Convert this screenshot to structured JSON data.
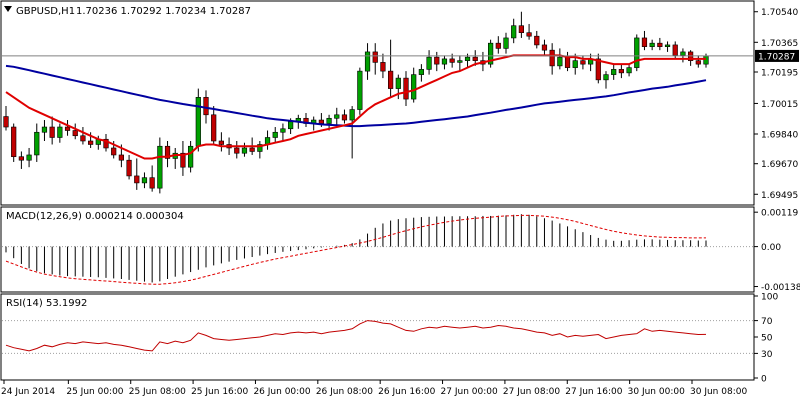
{
  "header": {
    "symbol_label": "GBPUSD,H1",
    "ohlc_text": "1.70236 1.70292 1.70234 1.70287"
  },
  "colors": {
    "background": "#ffffff",
    "frame": "#000000",
    "grid_dotted": "#a0a0a0",
    "bull_candle": "#00a000",
    "bear_candle": "#c00000",
    "ma_fast": "#e00000",
    "ma_slow": "#0000a0",
    "macd_hist": "#000000",
    "macd_signal": "#e00000",
    "rsi_line": "#c00000",
    "current_price_line": "#808080"
  },
  "chart_data": [
    {
      "type": "candlestick",
      "title": "GBPUSD,H1",
      "ylim": [
        1.69445,
        1.7059
      ],
      "y_ticks": [
        1.7054,
        1.70365,
        1.70195,
        1.70015,
        1.6984,
        1.6967,
        1.69495
      ],
      "y_tick_labels": [
        "1.70540",
        "1.70365",
        "1.70195",
        "1.70015",
        "1.69840",
        "1.69670",
        "1.69495"
      ],
      "current_price": 1.70287,
      "current_price_label": "1.70287",
      "x_labels": [
        "24 Jun 2014",
        "25 Jun 00:00",
        "25 Jun 08:00",
        "25 Jun 16:00",
        "26 Jun 00:00",
        "26 Jun 08:00",
        "26 Jun 16:00",
        "27 Jun 00:00",
        "27 Jun 08:00",
        "27 Jun 16:00",
        "30 Jun 00:00",
        "30 Jun 08:00"
      ],
      "candles": [
        {
          "o": 1.6994,
          "h": 1.7,
          "l": 1.6986,
          "c": 1.6988
        },
        {
          "o": 1.6988,
          "h": 1.699,
          "l": 1.6968,
          "c": 1.6971
        },
        {
          "o": 1.6971,
          "h": 1.6974,
          "l": 1.6964,
          "c": 1.6969
        },
        {
          "o": 1.6969,
          "h": 1.6976,
          "l": 1.6965,
          "c": 1.6972
        },
        {
          "o": 1.6972,
          "h": 1.699,
          "l": 1.6968,
          "c": 1.6985
        },
        {
          "o": 1.6985,
          "h": 1.6992,
          "l": 1.698,
          "c": 1.6988
        },
        {
          "o": 1.6988,
          "h": 1.6994,
          "l": 1.6978,
          "c": 1.6982
        },
        {
          "o": 1.6982,
          "h": 1.699,
          "l": 1.6979,
          "c": 1.6988
        },
        {
          "o": 1.6988,
          "h": 1.6992,
          "l": 1.6983,
          "c": 1.6986
        },
        {
          "o": 1.6986,
          "h": 1.699,
          "l": 1.6981,
          "c": 1.6983
        },
        {
          "o": 1.6983,
          "h": 1.6988,
          "l": 1.6978,
          "c": 1.698
        },
        {
          "o": 1.698,
          "h": 1.6985,
          "l": 1.6976,
          "c": 1.6978
        },
        {
          "o": 1.6978,
          "h": 1.6983,
          "l": 1.6975,
          "c": 1.6981
        },
        {
          "o": 1.6981,
          "h": 1.6984,
          "l": 1.6974,
          "c": 1.6976
        },
        {
          "o": 1.6976,
          "h": 1.698,
          "l": 1.697,
          "c": 1.6972
        },
        {
          "o": 1.6972,
          "h": 1.6978,
          "l": 1.6965,
          "c": 1.6969
        },
        {
          "o": 1.6969,
          "h": 1.6972,
          "l": 1.6958,
          "c": 1.696
        },
        {
          "o": 1.696,
          "h": 1.697,
          "l": 1.6952,
          "c": 1.6956
        },
        {
          "o": 1.6956,
          "h": 1.6962,
          "l": 1.6953,
          "c": 1.6959
        },
        {
          "o": 1.6959,
          "h": 1.6966,
          "l": 1.6951,
          "c": 1.6953
        },
        {
          "o": 1.6953,
          "h": 1.6982,
          "l": 1.695,
          "c": 1.6977
        },
        {
          "o": 1.6977,
          "h": 1.698,
          "l": 1.6965,
          "c": 1.697
        },
        {
          "o": 1.697,
          "h": 1.6976,
          "l": 1.6964,
          "c": 1.6973
        },
        {
          "o": 1.6973,
          "h": 1.698,
          "l": 1.696,
          "c": 1.6965
        },
        {
          "o": 1.6965,
          "h": 1.698,
          "l": 1.6962,
          "c": 1.6977
        },
        {
          "o": 1.6977,
          "h": 1.701,
          "l": 1.6974,
          "c": 1.7005
        },
        {
          "o": 1.7005,
          "h": 1.7009,
          "l": 1.699,
          "c": 1.6995
        },
        {
          "o": 1.6995,
          "h": 1.7,
          "l": 1.6978,
          "c": 1.698
        },
        {
          "o": 1.698,
          "h": 1.6985,
          "l": 1.6974,
          "c": 1.6978
        },
        {
          "o": 1.6978,
          "h": 1.6982,
          "l": 1.6972,
          "c": 1.6976
        },
        {
          "o": 1.6976,
          "h": 1.698,
          "l": 1.697,
          "c": 1.6973
        },
        {
          "o": 1.6973,
          "h": 1.6979,
          "l": 1.6971,
          "c": 1.6976
        },
        {
          "o": 1.6976,
          "h": 1.6982,
          "l": 1.6972,
          "c": 1.6974
        },
        {
          "o": 1.6974,
          "h": 1.698,
          "l": 1.697,
          "c": 1.6978
        },
        {
          "o": 1.6978,
          "h": 1.6986,
          "l": 1.6975,
          "c": 1.6982
        },
        {
          "o": 1.6982,
          "h": 1.6988,
          "l": 1.6979,
          "c": 1.6985
        },
        {
          "o": 1.6985,
          "h": 1.699,
          "l": 1.698,
          "c": 1.6987
        },
        {
          "o": 1.6987,
          "h": 1.6993,
          "l": 1.6984,
          "c": 1.6991
        },
        {
          "o": 1.6991,
          "h": 1.6995,
          "l": 1.6987,
          "c": 1.6993
        },
        {
          "o": 1.6993,
          "h": 1.6996,
          "l": 1.6988,
          "c": 1.699
        },
        {
          "o": 1.699,
          "h": 1.6994,
          "l": 1.6986,
          "c": 1.6992
        },
        {
          "o": 1.6992,
          "h": 1.6996,
          "l": 1.6988,
          "c": 1.699
        },
        {
          "o": 1.699,
          "h": 1.6995,
          "l": 1.6986,
          "c": 1.6993
        },
        {
          "o": 1.6993,
          "h": 1.6999,
          "l": 1.6988,
          "c": 1.6995
        },
        {
          "o": 1.6995,
          "h": 1.6998,
          "l": 1.699,
          "c": 1.6992
        },
        {
          "o": 1.6992,
          "h": 1.7,
          "l": 1.697,
          "c": 1.6998
        },
        {
          "o": 1.6998,
          "h": 1.7022,
          "l": 1.6995,
          "c": 1.702
        },
        {
          "o": 1.702,
          "h": 1.7036,
          "l": 1.7015,
          "c": 1.7031
        },
        {
          "o": 1.7031,
          "h": 1.7036,
          "l": 1.7018,
          "c": 1.7025
        },
        {
          "o": 1.7025,
          "h": 1.703,
          "l": 1.7016,
          "c": 1.702
        },
        {
          "o": 1.702,
          "h": 1.7038,
          "l": 1.7005,
          "c": 1.701
        },
        {
          "o": 1.701,
          "h": 1.7018,
          "l": 1.7004,
          "c": 1.7016
        },
        {
          "o": 1.7016,
          "h": 1.702,
          "l": 1.7,
          "c": 1.7004
        },
        {
          "o": 1.7004,
          "h": 1.7022,
          "l": 1.7002,
          "c": 1.7018
        },
        {
          "o": 1.7018,
          "h": 1.7024,
          "l": 1.7014,
          "c": 1.7021
        },
        {
          "o": 1.7021,
          "h": 1.7032,
          "l": 1.7018,
          "c": 1.7028
        },
        {
          "o": 1.7028,
          "h": 1.7031,
          "l": 1.702,
          "c": 1.7024
        },
        {
          "o": 1.7024,
          "h": 1.7029,
          "l": 1.7021,
          "c": 1.7027
        },
        {
          "o": 1.7027,
          "h": 1.703,
          "l": 1.7022,
          "c": 1.7025
        },
        {
          "o": 1.7025,
          "h": 1.7029,
          "l": 1.702,
          "c": 1.7026
        },
        {
          "o": 1.7026,
          "h": 1.703,
          "l": 1.7022,
          "c": 1.7028
        },
        {
          "o": 1.7028,
          "h": 1.7032,
          "l": 1.7023,
          "c": 1.7026
        },
        {
          "o": 1.7026,
          "h": 1.7031,
          "l": 1.702,
          "c": 1.7024
        },
        {
          "o": 1.7024,
          "h": 1.7038,
          "l": 1.7022,
          "c": 1.7036
        },
        {
          "o": 1.7036,
          "h": 1.704,
          "l": 1.703,
          "c": 1.7033
        },
        {
          "o": 1.7033,
          "h": 1.7042,
          "l": 1.703,
          "c": 1.7039
        },
        {
          "o": 1.7039,
          "h": 1.705,
          "l": 1.7036,
          "c": 1.7046
        },
        {
          "o": 1.7046,
          "h": 1.7054,
          "l": 1.7039,
          "c": 1.7042
        },
        {
          "o": 1.7042,
          "h": 1.7047,
          "l": 1.7038,
          "c": 1.704
        },
        {
          "o": 1.704,
          "h": 1.7043,
          "l": 1.7033,
          "c": 1.7035
        },
        {
          "o": 1.7035,
          "h": 1.7038,
          "l": 1.7029,
          "c": 1.7032
        },
        {
          "o": 1.7032,
          "h": 1.7036,
          "l": 1.7018,
          "c": 1.7023
        },
        {
          "o": 1.7023,
          "h": 1.7033,
          "l": 1.7021,
          "c": 1.7028
        },
        {
          "o": 1.7028,
          "h": 1.7031,
          "l": 1.702,
          "c": 1.7022
        },
        {
          "o": 1.7022,
          "h": 1.703,
          "l": 1.7018,
          "c": 1.7026
        },
        {
          "o": 1.7026,
          "h": 1.7029,
          "l": 1.7021,
          "c": 1.7024
        },
        {
          "o": 1.7024,
          "h": 1.703,
          "l": 1.702,
          "c": 1.7027
        },
        {
          "o": 1.7027,
          "h": 1.703,
          "l": 1.7013,
          "c": 1.7015
        },
        {
          "o": 1.7015,
          "h": 1.702,
          "l": 1.701,
          "c": 1.7018
        },
        {
          "o": 1.7018,
          "h": 1.7024,
          "l": 1.7015,
          "c": 1.7021
        },
        {
          "o": 1.7021,
          "h": 1.7024,
          "l": 1.7016,
          "c": 1.7019
        },
        {
          "o": 1.7019,
          "h": 1.7024,
          "l": 1.7017,
          "c": 1.7022
        },
        {
          "o": 1.7022,
          "h": 1.7041,
          "l": 1.702,
          "c": 1.7039
        },
        {
          "o": 1.7039,
          "h": 1.7043,
          "l": 1.7032,
          "c": 1.7034
        },
        {
          "o": 1.7034,
          "h": 1.7038,
          "l": 1.7032,
          "c": 1.7036
        },
        {
          "o": 1.7036,
          "h": 1.7039,
          "l": 1.7032,
          "c": 1.7034
        },
        {
          "o": 1.7034,
          "h": 1.7037,
          "l": 1.7031,
          "c": 1.7035
        },
        {
          "o": 1.7035,
          "h": 1.7037,
          "l": 1.7027,
          "c": 1.7029
        },
        {
          "o": 1.7029,
          "h": 1.7033,
          "l": 1.7025,
          "c": 1.7031
        },
        {
          "o": 1.7031,
          "h": 1.7032,
          "l": 1.7023,
          "c": 1.7026
        },
        {
          "o": 1.7026,
          "h": 1.7029,
          "l": 1.7022,
          "c": 1.7024
        },
        {
          "o": 1.7024,
          "h": 1.703,
          "l": 1.7022,
          "c": 1.70287
        }
      ],
      "ma_fast": [
        1.7008,
        1.7005,
        1.7002,
        1.6999,
        1.6997,
        1.6995,
        1.6993,
        1.6991,
        1.6989,
        1.6987,
        1.6985,
        1.6983,
        1.6981,
        1.698,
        1.6978,
        1.6976,
        1.6974,
        1.6972,
        1.697,
        1.697,
        1.6971,
        1.6971,
        1.6972,
        1.6972,
        1.6973,
        1.6977,
        1.6978,
        1.6978,
        1.6977,
        1.6977,
        1.6977,
        1.6977,
        1.6977,
        1.6977,
        1.6978,
        1.6979,
        1.698,
        1.6981,
        1.6983,
        1.6984,
        1.6985,
        1.6986,
        1.6987,
        1.6988,
        1.6989,
        1.699,
        1.6994,
        1.6998,
        1.7001,
        1.7003,
        1.7005,
        1.7007,
        1.7008,
        1.7009,
        1.7011,
        1.7013,
        1.7015,
        1.7017,
        1.7019,
        1.702,
        1.7022,
        1.7024,
        1.7025,
        1.7026,
        1.7027,
        1.7028,
        1.7029,
        1.7029,
        1.7029,
        1.7029,
        1.7029,
        1.7029,
        1.7029,
        1.7028,
        1.7028,
        1.7027,
        1.7027,
        1.7026,
        1.7025,
        1.7024,
        1.7024,
        1.7024,
        1.7026,
        1.7027,
        1.7027,
        1.7027,
        1.7027,
        1.7027,
        1.7027,
        1.7027,
        1.7027,
        1.7027
      ],
      "ma_slow": [
        1.7023,
        1.70225,
        1.70215,
        1.70205,
        1.70195,
        1.70185,
        1.70175,
        1.70165,
        1.70155,
        1.70145,
        1.70135,
        1.70125,
        1.70115,
        1.70105,
        1.70095,
        1.70085,
        1.70075,
        1.70065,
        1.70055,
        1.70045,
        1.70035,
        1.70028,
        1.7002,
        1.70012,
        1.70005,
        1.69998,
        1.6999,
        1.69983,
        1.69975,
        1.69968,
        1.6996,
        1.69953,
        1.69945,
        1.69938,
        1.6993,
        1.69925,
        1.6992,
        1.69915,
        1.6991,
        1.69905,
        1.699,
        1.69895,
        1.69892,
        1.6989,
        1.69888,
        1.69885,
        1.69885,
        1.69888,
        1.6989,
        1.69892,
        1.69895,
        1.69898,
        1.699,
        1.69905,
        1.6991,
        1.69915,
        1.6992,
        1.69925,
        1.6993,
        1.69935,
        1.6994,
        1.69948,
        1.69955,
        1.69962,
        1.6997,
        1.69978,
        1.69985,
        1.69992,
        1.7,
        1.70008,
        1.70015,
        1.7002,
        1.70025,
        1.7003,
        1.70035,
        1.7004,
        1.70045,
        1.7005,
        1.70055,
        1.70062,
        1.7007,
        1.70078,
        1.70085,
        1.70092,
        1.701,
        1.70105,
        1.7011,
        1.70118,
        1.70125,
        1.70132,
        1.7014,
        1.70148
      ]
    },
    {
      "type": "bar",
      "title": "MACD(12,26,9) 0.000214 0.000304",
      "ylim": [
        -0.0015,
        0.0013
      ],
      "y_ticks": [
        0.00119,
        0.0,
        -0.00138
      ],
      "y_tick_labels": [
        "0.00119",
        "0.00",
        "-0.00138"
      ],
      "histogram": [
        -0.0002,
        -0.0004,
        -0.0006,
        -0.00075,
        -0.00085,
        -0.00092,
        -0.00096,
        -0.001,
        -0.00102,
        -0.00103,
        -0.00104,
        -0.00105,
        -0.00106,
        -0.00108,
        -0.0011,
        -0.00112,
        -0.00115,
        -0.00118,
        -0.00121,
        -0.00124,
        -0.0012,
        -0.00112,
        -0.00104,
        -0.00096,
        -0.00088,
        -0.0008,
        -0.00072,
        -0.00065,
        -0.00058,
        -0.00052,
        -0.00046,
        -0.00041,
        -0.00036,
        -0.00031,
        -0.00026,
        -0.00022,
        -0.00018,
        -0.00015,
        -0.00012,
        -9e-05,
        -6e-05,
        -3e-05,
        0.0,
        3e-05,
        6e-05,
        0.00012,
        0.00025,
        0.00045,
        0.00065,
        0.0008,
        0.0009,
        0.00095,
        0.00098,
        0.001,
        0.00102,
        0.00103,
        0.00104,
        0.00104,
        0.00105,
        0.00105,
        0.00105,
        0.00105,
        0.00106,
        0.00106,
        0.00107,
        0.00108,
        0.0011,
        0.00112,
        0.0011,
        0.00105,
        0.00098,
        0.0009,
        0.0008,
        0.0007,
        0.0006,
        0.0005,
        0.0004,
        0.0003,
        0.00024,
        0.0002,
        0.0002,
        0.00022,
        0.00024,
        0.00025,
        0.00025,
        0.00024,
        0.00023,
        0.00022,
        0.00022,
        0.00022,
        0.00021,
        0.00021
      ],
      "signal": [
        -0.0005,
        -0.0006,
        -0.0007,
        -0.0008,
        -0.00088,
        -0.00095,
        -0.001,
        -0.00104,
        -0.00108,
        -0.00111,
        -0.00113,
        -0.00115,
        -0.00117,
        -0.00119,
        -0.00121,
        -0.00123,
        -0.00125,
        -0.00127,
        -0.00129,
        -0.0013,
        -0.0013,
        -0.00128,
        -0.00125,
        -0.00121,
        -0.00116,
        -0.0011,
        -0.00103,
        -0.00096,
        -0.00089,
        -0.00082,
        -0.00075,
        -0.00068,
        -0.00061,
        -0.00055,
        -0.00049,
        -0.00043,
        -0.00038,
        -0.00033,
        -0.00028,
        -0.00023,
        -0.00018,
        -0.00013,
        -8e-05,
        -3e-05,
        2e-05,
        7e-05,
        0.00012,
        0.00018,
        0.00025,
        0.00032,
        0.0004,
        0.00048,
        0.00055,
        0.00062,
        0.00068,
        0.00074,
        0.00079,
        0.00084,
        0.00088,
        0.00092,
        0.00095,
        0.00098,
        0.001,
        0.00102,
        0.00104,
        0.00106,
        0.00107,
        0.00108,
        0.00108,
        0.00107,
        0.00105,
        0.00102,
        0.00098,
        0.00093,
        0.00087,
        0.0008,
        0.00073,
        0.00066,
        0.00059,
        0.00053,
        0.00048,
        0.00044,
        0.0004,
        0.00037,
        0.00035,
        0.00033,
        0.00032,
        0.00031,
        0.00031,
        0.0003,
        0.0003,
        0.0003
      ]
    },
    {
      "type": "line",
      "title": "RSI(14) 53.1992",
      "ylim": [
        0,
        100
      ],
      "y_ticks": [
        100,
        70,
        50,
        30,
        0
      ],
      "y_tick_labels": [
        "100",
        "70",
        "50",
        "30",
        "0"
      ],
      "levels": [
        70,
        30
      ],
      "values": [
        40,
        37,
        35,
        33,
        36,
        40,
        38,
        41,
        43,
        42,
        44,
        43,
        42,
        43,
        41,
        40,
        38,
        36,
        34,
        33,
        44,
        42,
        45,
        43,
        46,
        55,
        52,
        48,
        47,
        46,
        47,
        48,
        49,
        50,
        52,
        54,
        53,
        55,
        56,
        55,
        56,
        54,
        56,
        57,
        58,
        60,
        66,
        70,
        69,
        67,
        66,
        62,
        58,
        57,
        60,
        62,
        61,
        63,
        62,
        61,
        62,
        63,
        61,
        62,
        64,
        63,
        61,
        60,
        58,
        56,
        55,
        52,
        54,
        50,
        52,
        51,
        52,
        53,
        48,
        50,
        52,
        53,
        54,
        60,
        57,
        58,
        57,
        56,
        55,
        54,
        53,
        53.2
      ]
    }
  ]
}
